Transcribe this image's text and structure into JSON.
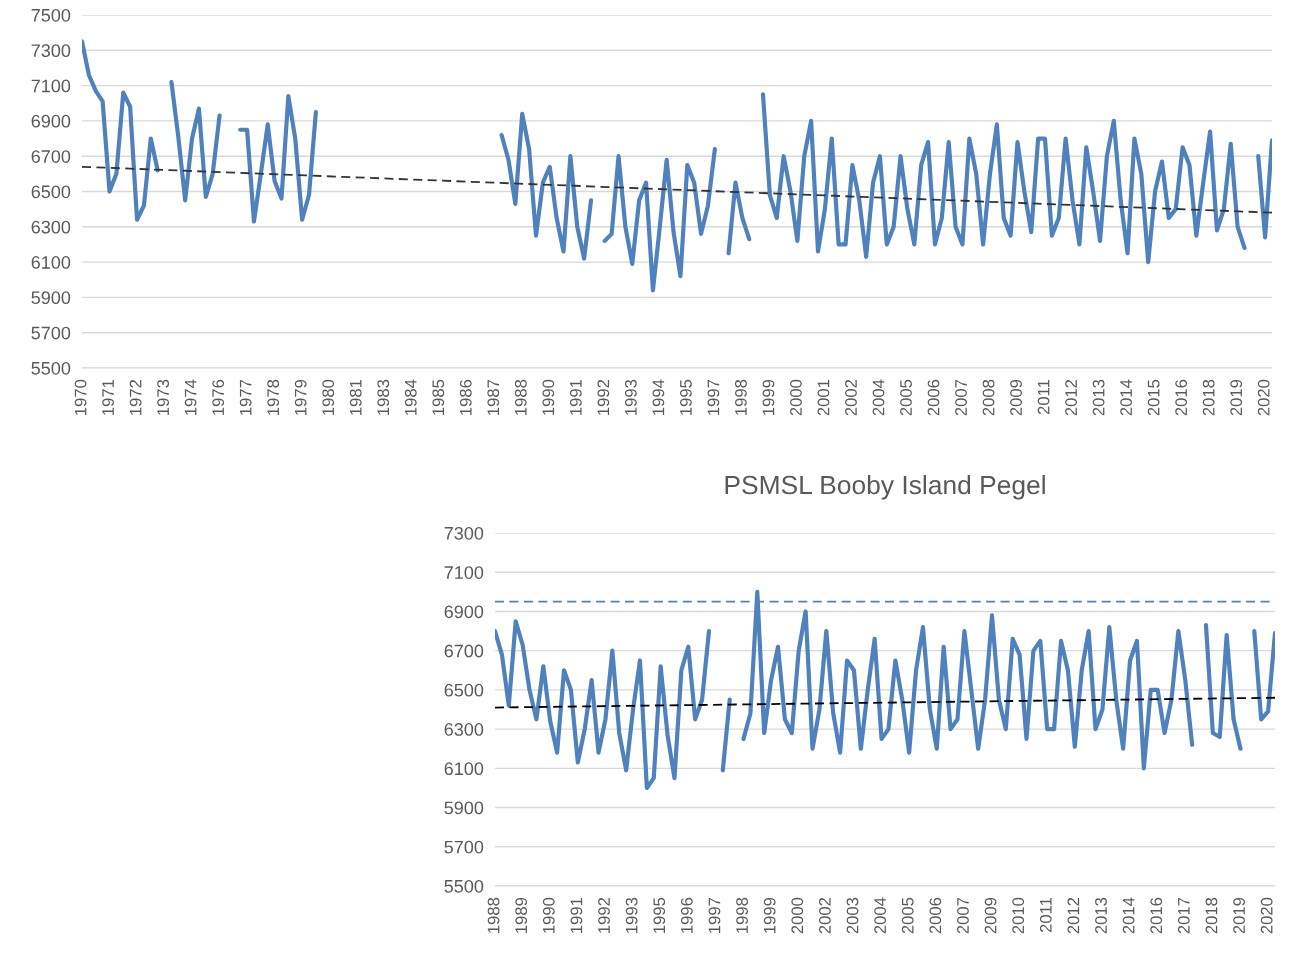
{
  "chart_data": [
    {
      "type": "line",
      "categories": [
        "1970",
        null,
        null,
        null,
        "1971",
        null,
        null,
        null,
        "1972",
        null,
        null,
        null,
        "1973",
        null,
        null,
        null,
        "1974",
        null,
        null,
        null,
        "1976",
        null,
        null,
        null,
        "1977",
        null,
        null,
        null,
        "1978",
        null,
        null,
        null,
        "1979",
        null,
        null,
        null,
        "1980",
        null,
        null,
        null,
        "1981",
        null,
        null,
        null,
        "1983",
        null,
        null,
        null,
        "1984",
        null,
        null,
        null,
        "1985",
        null,
        null,
        null,
        "1986",
        null,
        null,
        null,
        "1987",
        null,
        null,
        null,
        "1988",
        null,
        null,
        null,
        "1990",
        null,
        null,
        null,
        "1991",
        null,
        null,
        null,
        "1992",
        null,
        null,
        null,
        "1993",
        null,
        null,
        null,
        "1994",
        null,
        null,
        null,
        "1995",
        null,
        null,
        null,
        "1997",
        null,
        null,
        null,
        "1998",
        null,
        null,
        null,
        "1999",
        null,
        null,
        null,
        "2000",
        null,
        null,
        null,
        "2001",
        null,
        null,
        null,
        "2002",
        null,
        null,
        null,
        "2004",
        null,
        null,
        null,
        "2005",
        null,
        null,
        null,
        "2006",
        null,
        null,
        null,
        "2007",
        null,
        null,
        null,
        "2008",
        null,
        null,
        null,
        "2009",
        null,
        null,
        null,
        "2011",
        null,
        null,
        null,
        "2012",
        null,
        null,
        null,
        "2013",
        null,
        null,
        null,
        "2014",
        null,
        null,
        null,
        "2015",
        null,
        null,
        null,
        "2016",
        null,
        null,
        null,
        "2018",
        null,
        null,
        null,
        "2019",
        null,
        null,
        null,
        "2020",
        null
      ],
      "series": [
        {
          "type": "line",
          "color": "#4f81bd",
          "line_style": "solid",
          "values": [
            7350,
            7160,
            7070,
            7010,
            6500,
            6600,
            7060,
            6980,
            6340,
            6420,
            6800,
            6620,
            null,
            7120,
            6810,
            6450,
            6800,
            6970,
            6470,
            6600,
            6930,
            null,
            null,
            6850,
            6850,
            6330,
            6600,
            6880,
            6560,
            6460,
            7040,
            6800,
            6340,
            6480,
            6950,
            null,
            null,
            null,
            null,
            null,
            null,
            null,
            null,
            null,
            null,
            null,
            null,
            null,
            null,
            null,
            null,
            null,
            null,
            null,
            null,
            null,
            null,
            null,
            null,
            null,
            null,
            6820,
            6680,
            6430,
            6940,
            6740,
            6250,
            6550,
            6640,
            6350,
            6160,
            6700,
            6300,
            6120,
            6450,
            null,
            6220,
            6260,
            6700,
            6300,
            6090,
            6450,
            6550,
            5940,
            6300,
            6680,
            6270,
            6020,
            6650,
            6550,
            6260,
            6420,
            6740,
            null,
            6150,
            6550,
            6350,
            6230,
            null,
            7050,
            6480,
            6350,
            6700,
            6500,
            6220,
            6700,
            6900,
            6160,
            6400,
            6800,
            6200,
            6200,
            6650,
            6450,
            6130,
            6550,
            6700,
            6200,
            6300,
            6700,
            6400,
            6200,
            6650,
            6780,
            6200,
            6350,
            6780,
            6300,
            6200,
            6800,
            6600,
            6200,
            6600,
            6880,
            6350,
            6250,
            6780,
            6500,
            6270,
            6800,
            6800,
            6250,
            6350,
            6800,
            6450,
            6200,
            6750,
            6500,
            6220,
            6700,
            6900,
            6450,
            6150,
            6800,
            6600,
            6100,
            6500,
            6670,
            6350,
            6400,
            6750,
            6650,
            6250,
            6550,
            6840,
            6280,
            6400,
            6770,
            6300,
            6180,
            null,
            6700,
            6240,
            6790
          ]
        },
        {
          "type": "line",
          "color": "#333333",
          "line_style": "dashed",
          "values": [
            6640,
            null,
            null,
            null,
            null,
            null,
            null,
            null,
            null,
            null,
            null,
            null,
            null,
            null,
            null,
            null,
            null,
            null,
            null,
            null,
            null,
            null,
            null,
            null,
            null,
            null,
            null,
            null,
            null,
            null,
            null,
            null,
            null,
            null,
            null,
            null,
            null,
            null,
            null,
            null,
            null,
            null,
            null,
            null,
            null,
            null,
            null,
            null,
            null,
            null,
            null,
            null,
            null,
            null,
            null,
            null,
            null,
            null,
            null,
            null,
            null,
            null,
            null,
            null,
            null,
            null,
            null,
            null,
            null,
            null,
            null,
            null,
            null,
            null,
            null,
            null,
            null,
            null,
            null,
            null,
            null,
            null,
            null,
            null,
            null,
            null,
            null,
            null,
            null,
            null,
            null,
            null,
            null,
            null,
            null,
            null,
            null,
            null,
            null,
            null,
            null,
            null,
            null,
            null,
            null,
            null,
            null,
            null,
            null,
            null,
            null,
            null,
            null,
            null,
            null,
            null,
            null,
            null,
            null,
            null,
            null,
            null,
            null,
            null,
            null,
            null,
            null,
            null,
            null,
            null,
            null,
            null,
            null,
            null,
            null,
            null,
            null,
            null,
            null,
            null,
            null,
            null,
            null,
            null,
            null,
            null,
            null,
            null,
            null,
            null,
            null,
            null,
            null,
            null,
            null,
            null,
            null,
            null,
            null,
            null,
            null,
            null,
            null,
            null,
            null,
            null,
            null,
            null,
            null,
            null,
            null,
            null,
            null,
            6380
          ]
        }
      ],
      "ylim": [
        5500,
        7500
      ],
      "yticks": [
        5500,
        5700,
        5900,
        6100,
        6300,
        6500,
        6700,
        6900,
        7100,
        7300,
        7500
      ],
      "grid": "y"
    },
    {
      "type": "line",
      "title": "PSMSL Booby Island Pegel",
      "categories": [
        "1988",
        null,
        null,
        null,
        "1989",
        null,
        null,
        null,
        "1990",
        null,
        null,
        null,
        "1991",
        null,
        null,
        null,
        "1992",
        null,
        null,
        null,
        "1993",
        null,
        null,
        null,
        "1995",
        null,
        null,
        null,
        "1996",
        null,
        null,
        null,
        "1997",
        null,
        null,
        null,
        "1998",
        null,
        null,
        null,
        "1999",
        null,
        null,
        null,
        "2000",
        null,
        null,
        null,
        "2002",
        null,
        null,
        null,
        "2003",
        null,
        null,
        null,
        "2004",
        null,
        null,
        null,
        "2005",
        null,
        null,
        null,
        "2006",
        null,
        null,
        null,
        "2007",
        null,
        null,
        null,
        "2009",
        null,
        null,
        null,
        "2010",
        null,
        null,
        null,
        "2011",
        null,
        null,
        null,
        "2012",
        null,
        null,
        null,
        "2013",
        null,
        null,
        null,
        "2014",
        null,
        null,
        null,
        "2016",
        null,
        null,
        null,
        "2017",
        null,
        null,
        null,
        "2018",
        null,
        null,
        null,
        "2019",
        null,
        null,
        null,
        "2020",
        null
      ],
      "series": [
        {
          "type": "line",
          "color": "#4f81bd",
          "line_style": "solid",
          "values": [
            6800,
            6680,
            6420,
            6850,
            6730,
            6500,
            6350,
            6620,
            6340,
            6180,
            6600,
            6500,
            6130,
            6300,
            6550,
            6180,
            6350,
            6700,
            6280,
            6090,
            6400,
            6650,
            6000,
            6050,
            6620,
            6270,
            6050,
            6600,
            6720,
            6350,
            6450,
            6800,
            null,
            6090,
            6450,
            null,
            6250,
            6380,
            7000,
            6280,
            6550,
            6720,
            6350,
            6280,
            6700,
            6900,
            6200,
            6400,
            6800,
            6380,
            6180,
            6650,
            6600,
            6200,
            6500,
            6760,
            6250,
            6300,
            6650,
            6450,
            6180,
            6600,
            6820,
            6400,
            6200,
            6720,
            6300,
            6350,
            6800,
            6500,
            6200,
            6450,
            6880,
            6450,
            6300,
            6760,
            6680,
            6250,
            6700,
            6750,
            6300,
            6300,
            6750,
            6600,
            6210,
            6600,
            6800,
            6300,
            6400,
            6820,
            6450,
            6200,
            6650,
            6750,
            6100,
            6500,
            6500,
            6280,
            6450,
            6800,
            6550,
            6220,
            null,
            6830,
            6280,
            6260,
            6780,
            6350,
            6200,
            null,
            6800,
            6350,
            6390,
            6790
          ]
        },
        {
          "type": "line",
          "color": "#000000",
          "line_style": "dashed",
          "values": [
            6410,
            null,
            null,
            null,
            null,
            null,
            null,
            null,
            null,
            null,
            null,
            null,
            null,
            null,
            null,
            null,
            null,
            null,
            null,
            null,
            null,
            null,
            null,
            null,
            null,
            null,
            null,
            null,
            null,
            null,
            null,
            null,
            null,
            null,
            null,
            null,
            null,
            null,
            null,
            null,
            null,
            null,
            null,
            null,
            null,
            null,
            null,
            null,
            null,
            null,
            null,
            null,
            null,
            null,
            null,
            null,
            null,
            null,
            null,
            null,
            null,
            null,
            null,
            null,
            null,
            null,
            null,
            null,
            null,
            null,
            null,
            null,
            null,
            null,
            null,
            null,
            null,
            null,
            null,
            null,
            null,
            null,
            null,
            null,
            null,
            null,
            null,
            null,
            null,
            null,
            null,
            null,
            null,
            null,
            null,
            null,
            null,
            null,
            null,
            null,
            null,
            null,
            null,
            null,
            null,
            null,
            null,
            null,
            null,
            null,
            null,
            null,
            null,
            6460
          ]
        }
      ],
      "ref_lines": [
        {
          "axis": "y",
          "value": 6950,
          "color": "#4f81bd",
          "line_style": "dashed"
        }
      ],
      "ylim": [
        5500,
        7300
      ],
      "yticks": [
        5500,
        5700,
        5900,
        6100,
        6300,
        6500,
        6700,
        6900,
        7100,
        7300
      ],
      "grid": "y"
    }
  ]
}
